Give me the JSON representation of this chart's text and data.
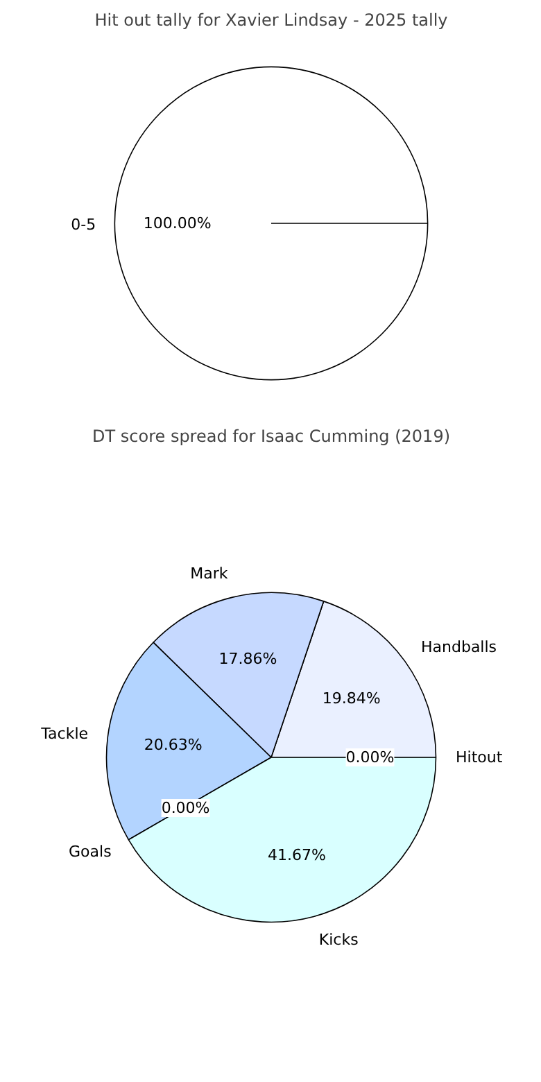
{
  "chart_data": [
    {
      "type": "pie",
      "title": "Hit out tally for Xavier Lindsay - 2025 tally",
      "categories": [
        "0-5"
      ],
      "values": [
        100
      ],
      "colors": [
        "#ffffff"
      ],
      "value_labels": [
        "100.00%"
      ]
    },
    {
      "type": "pie",
      "title": "DT score spread for Isaac Cumming (2019)",
      "categories": [
        "Handballs",
        "Mark",
        "Tackle",
        "Goals",
        "Kicks",
        "Hitout"
      ],
      "values": [
        19.84,
        17.86,
        20.63,
        0.0,
        41.67,
        0.0
      ],
      "colors": [
        "#eaf0ff",
        "#c6d9ff",
        "#b3d4ff",
        "#cce0ff",
        "#d9ffff",
        "#e0ecff"
      ],
      "value_labels": [
        "19.84%",
        "17.86%",
        "20.63%",
        "0.00%",
        "41.67%",
        "0.00%"
      ]
    }
  ]
}
